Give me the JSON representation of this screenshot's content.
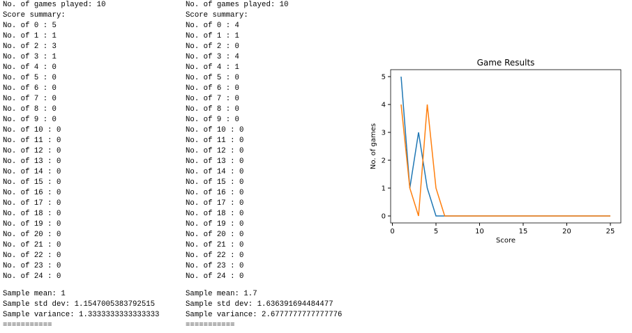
{
  "columns": [
    {
      "summary": [
        "No. of games played: 10",
        "Score summary:",
        "No. of 0 : 5",
        "No. of 1 : 1",
        "No. of 2 : 3",
        "No. of 3 : 1",
        "No. of 4 : 0",
        "No. of 5 : 0",
        "No. of 6 : 0",
        "No. of 7 : 0",
        "No. of 8 : 0",
        "No. of 9 : 0",
        "No. of 10 : 0",
        "No. of 11 : 0",
        "No. of 12 : 0",
        "No. of 13 : 0",
        "No. of 14 : 0",
        "No. of 15 : 0",
        "No. of 16 : 0",
        "No. of 17 : 0",
        "No. of 18 : 0",
        "No. of 19 : 0",
        "No. of 20 : 0",
        "No. of 21 : 0",
        "No. of 22 : 0",
        "No. of 23 : 0",
        "No. of 24 : 0"
      ],
      "stats": [
        "Sample mean: 1",
        "Sample std dev: 1.1547005383792515",
        "Sample variance: 1.3333333333333333",
        "==========="
      ]
    },
    {
      "summary": [
        "No. of games played: 10",
        "Score summary:",
        "No. of 0 : 4",
        "No. of 1 : 1",
        "No. of 2 : 0",
        "No. of 3 : 4",
        "No. of 4 : 1",
        "No. of 5 : 0",
        "No. of 6 : 0",
        "No. of 7 : 0",
        "No. of 8 : 0",
        "No. of 9 : 0",
        "No. of 10 : 0",
        "No. of 11 : 0",
        "No. of 12 : 0",
        "No. of 13 : 0",
        "No. of 14 : 0",
        "No. of 15 : 0",
        "No. of 16 : 0",
        "No. of 17 : 0",
        "No. of 18 : 0",
        "No. of 19 : 0",
        "No. of 20 : 0",
        "No. of 21 : 0",
        "No. of 22 : 0",
        "No. of 23 : 0",
        "No. of 24 : 0"
      ],
      "stats": [
        "Sample mean: 1.7",
        "Sample std dev: 1.636391694484477",
        "Sample variance: 2.6777777777777776",
        "==========="
      ]
    }
  ],
  "chart_data": {
    "type": "line",
    "title": "Game Results",
    "xlabel": "Score",
    "ylabel": "No. of games",
    "x": [
      1,
      2,
      3,
      4,
      5,
      6,
      7,
      8,
      9,
      10,
      11,
      12,
      13,
      14,
      15,
      16,
      17,
      18,
      19,
      20,
      21,
      22,
      23,
      24,
      25
    ],
    "series": [
      {
        "color": "#1f77b4",
        "values": [
          5,
          1,
          3,
          1,
          0,
          0,
          0,
          0,
          0,
          0,
          0,
          0,
          0,
          0,
          0,
          0,
          0,
          0,
          0,
          0,
          0,
          0,
          0,
          0,
          0
        ]
      },
      {
        "color": "#ff7f0e",
        "values": [
          4,
          1,
          0,
          4,
          1,
          0,
          0,
          0,
          0,
          0,
          0,
          0,
          0,
          0,
          0,
          0,
          0,
          0,
          0,
          0,
          0,
          0,
          0,
          0,
          0
        ]
      }
    ],
    "xlim": [
      -0.2,
      26.2
    ],
    "ylim": [
      -0.25,
      5.25
    ],
    "xticks": [
      0,
      5,
      10,
      15,
      20,
      25
    ],
    "yticks": [
      0,
      1,
      2,
      3,
      4,
      5
    ]
  }
}
